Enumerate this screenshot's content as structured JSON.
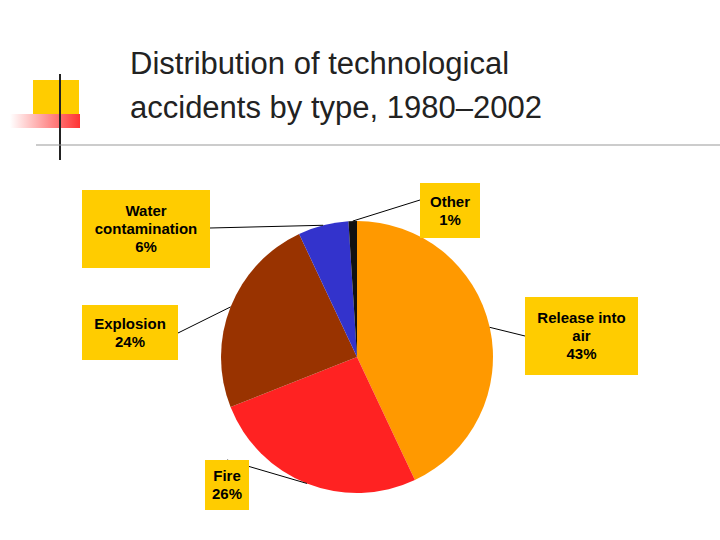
{
  "chart_data": {
    "type": "pie",
    "title": "Distribution of technological accidents by type, 1980–2002",
    "categories": [
      "Release into air",
      "Fire",
      "Explosion",
      "Water contamination",
      "Other"
    ],
    "values": [
      43,
      26,
      24,
      6,
      1
    ],
    "value_labels": [
      "43%",
      "26%",
      "24%",
      "6%",
      "1%"
    ],
    "colors": [
      "#FF9900",
      "#FF2222",
      "#993300",
      "#3333CC",
      "#111111"
    ],
    "data_labels": true
  }
}
